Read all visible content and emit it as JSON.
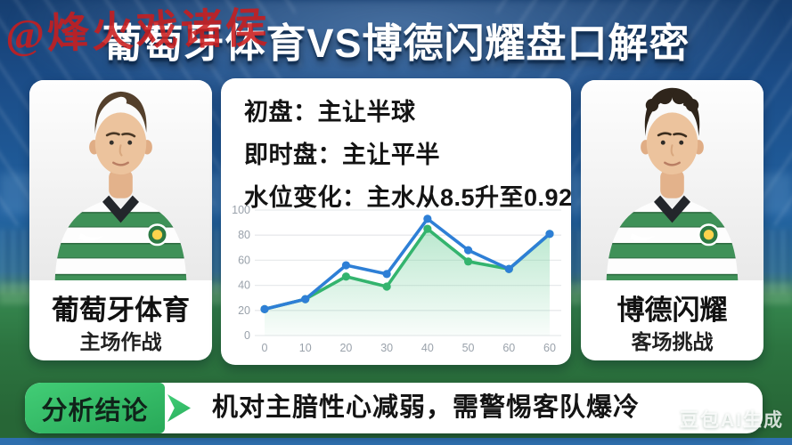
{
  "title": "葡萄牙体育VS博德闪耀盘口解密",
  "watermarks": {
    "top_left": "@烽火戏诸侯",
    "bottom_right": "豆包AI生成"
  },
  "teams": {
    "home": {
      "name": "葡萄牙体育",
      "status": "主场作战"
    },
    "away": {
      "name": "博德闪耀",
      "status": "客场挑战"
    }
  },
  "odds": {
    "lines": [
      "初盘：主让半球",
      "即时盘：主让平半",
      "水位变化：主水从8.5升至0.92"
    ]
  },
  "analysis": {
    "label": "分析结论",
    "conclusion": "机对主腤性心减弱，需警惕客队爆冷"
  },
  "colors": {
    "analysis_green": "#35c167",
    "watermark_red": "#c91c1c",
    "line_blue": "#2e7fd6",
    "line_green": "#34b46e"
  },
  "chart_data": {
    "type": "line",
    "title": "",
    "xlabel": "",
    "ylabel": "",
    "x_ticks": [
      "0",
      "10",
      "20",
      "30",
      "40",
      "50",
      "60",
      "60"
    ],
    "y_ticks": [
      0,
      20,
      40,
      60,
      80,
      100
    ],
    "ylim": [
      0,
      100
    ],
    "grid": true,
    "legend": "none",
    "series": [
      {
        "name": "blue-water-line",
        "color": "#2e7fd6",
        "area": false,
        "values": [
          21,
          29,
          56,
          49,
          93,
          68,
          53,
          81
        ]
      },
      {
        "name": "green-water-line",
        "color": "#34b46e",
        "area": true,
        "area_color": "#5cc88c",
        "values": [
          21,
          29,
          47,
          39,
          85,
          59,
          53,
          81
        ]
      }
    ]
  }
}
